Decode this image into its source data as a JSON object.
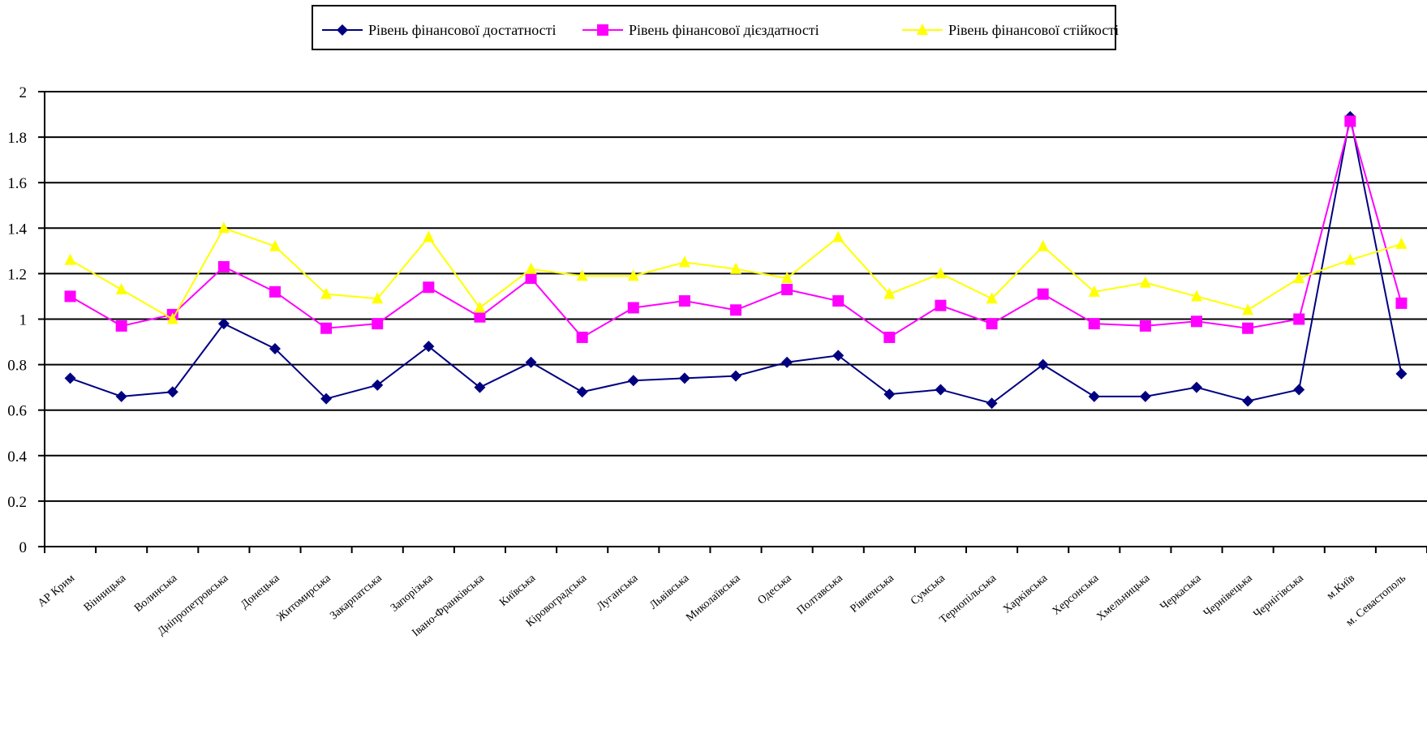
{
  "chart_data": {
    "type": "line",
    "categories": [
      "АР Крим",
      "Вінницька",
      "Волинська",
      "Дніпропетровська",
      "Донецька",
      "Житомирська",
      "Закарпатська",
      "Запорізька",
      "Івано-Франківська",
      "Київська",
      "Кіровоградська",
      "Луганська",
      "Львівська",
      "Миколаївська",
      "Одеська",
      "Полтавська",
      "Рівненська",
      "Сумська",
      "Тернопільська",
      "Харківська",
      "Херсонська",
      "Хмельницька",
      "Черкаська",
      "Чернівецька",
      "Чернігівська",
      "м.Київ",
      "м. Севастополь"
    ],
    "series": [
      {
        "name": "Рівень фінансової достатності",
        "color": "#000080",
        "marker": "diamond",
        "values": [
          0.74,
          0.66,
          0.68,
          0.98,
          0.87,
          0.65,
          0.71,
          0.88,
          0.7,
          0.81,
          0.68,
          0.73,
          0.74,
          0.75,
          0.81,
          0.84,
          0.67,
          0.69,
          0.63,
          0.8,
          0.66,
          0.66,
          0.7,
          0.64,
          0.69,
          1.89,
          0.76
        ]
      },
      {
        "name": "Рівень фінансової дієздатності",
        "color": "#ff00ff",
        "marker": "square",
        "values": [
          1.1,
          0.97,
          1.02,
          1.23,
          1.12,
          0.96,
          0.98,
          1.14,
          1.01,
          1.18,
          0.92,
          1.05,
          1.08,
          1.04,
          1.13,
          1.08,
          0.92,
          1.06,
          0.98,
          1.11,
          0.98,
          0.97,
          0.99,
          0.96,
          1.0,
          1.87,
          1.07
        ]
      },
      {
        "name": "Рівень фінансової стійкості",
        "color": "#ffff00",
        "marker": "triangle",
        "values": [
          1.26,
          1.13,
          1.0,
          1.4,
          1.32,
          1.11,
          1.09,
          1.36,
          1.05,
          1.22,
          1.19,
          1.19,
          1.25,
          1.22,
          1.18,
          1.36,
          1.11,
          1.2,
          1.09,
          1.32,
          1.12,
          1.16,
          1.1,
          1.04,
          1.18,
          1.26,
          1.33
        ]
      }
    ],
    "ylim": [
      0,
      2
    ],
    "y_ticks": [
      "0",
      "0.2",
      "0.4",
      "0.6",
      "0.8",
      "1",
      "1.2",
      "1.4",
      "1.6",
      "1.8",
      "2"
    ],
    "grid": true,
    "legend_position": "top-center",
    "title": "",
    "xlabel": "",
    "ylabel": ""
  }
}
